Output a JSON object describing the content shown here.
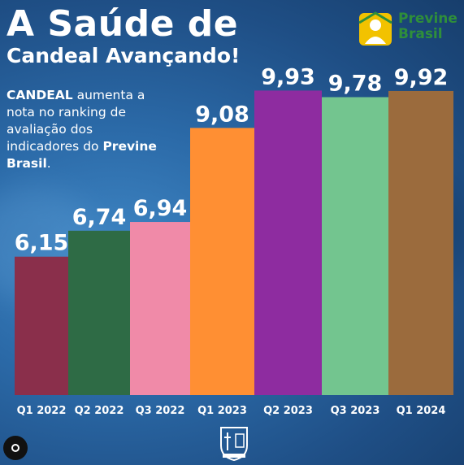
{
  "header": {
    "title_line1": "A Saúde de",
    "title_line2": "Candeal Avançando!"
  },
  "description": {
    "strong1": "CANDEAL",
    "text1": " aumenta a nota no ranking de avaliação dos indicadores do ",
    "strong2": "Previne Brasil",
    "text2": "."
  },
  "logo": {
    "line1": "Previne",
    "line2": "Brasil",
    "icon": "previne-brasil-logo-icon",
    "color_green": "#2f8f3a",
    "color_yellow": "#f2c200"
  },
  "footer": {
    "crest_icon": "municipal-crest-icon",
    "profile_icon": "instagram-profile-button-icon"
  },
  "chart_data": {
    "type": "bar",
    "categories": [
      "Q1 2022",
      "Q2 2022",
      "Q3 2022",
      "Q1 2023",
      "Q2 2023",
      "Q3 2023",
      "Q1 2024"
    ],
    "values": [
      6.15,
      6.74,
      6.94,
      9.08,
      9.93,
      9.78,
      9.92
    ],
    "data_labels": [
      "6,15",
      "6,74",
      "6,94",
      "9,08",
      "9,93",
      "9,78",
      "9,92"
    ],
    "colors": [
      "#8a2f4b",
      "#2e6b45",
      "#f08aa8",
      "#ff8f33",
      "#8e2ca0",
      "#73c58f",
      "#9b6b3d"
    ],
    "title": "",
    "xlabel": "",
    "ylabel": "",
    "ylim": [
      3.0,
      10.4
    ],
    "grid": false,
    "legend": "none"
  }
}
